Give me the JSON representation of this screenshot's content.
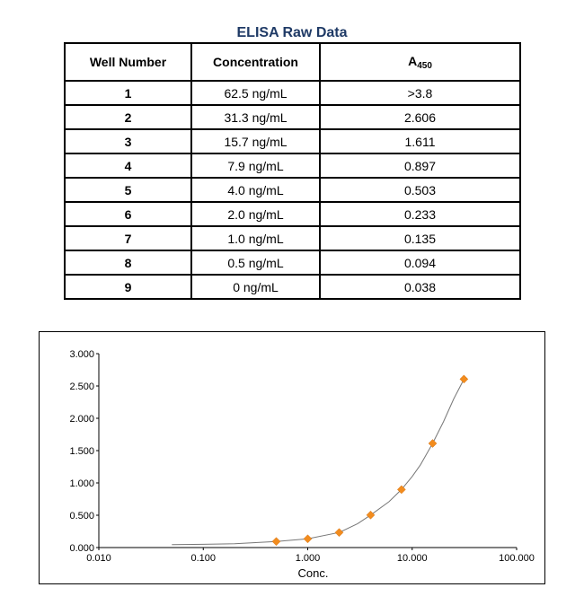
{
  "table": {
    "title": "ELISA Raw Data",
    "headers": {
      "well": "Well Number",
      "conc": "Concentration",
      "abs_main": "A",
      "abs_sub": "450"
    },
    "rows": [
      {
        "well": "1",
        "conc": "62.5 ng/mL",
        "abs": ">3.8"
      },
      {
        "well": "2",
        "conc": "31.3 ng/mL",
        "abs": "2.606"
      },
      {
        "well": "3",
        "conc": "15.7 ng/mL",
        "abs": "1.611"
      },
      {
        "well": "4",
        "conc": "7.9 ng/mL",
        "abs": "0.897"
      },
      {
        "well": "5",
        "conc": "4.0 ng/mL",
        "abs": "0.503"
      },
      {
        "well": "6",
        "conc": "2.0 ng/mL",
        "abs": "0.233"
      },
      {
        "well": "7",
        "conc": "1.0 ng/mL",
        "abs": "0.135"
      },
      {
        "well": "8",
        "conc": "0.5 ng/mL",
        "abs": "0.094"
      },
      {
        "well": "9",
        "conc": "0 ng/mL",
        "abs": "0.038"
      }
    ]
  },
  "chart_data": {
    "type": "scatter",
    "title": "",
    "xlabel": "Conc.",
    "ylabel": "",
    "x_scale": "log",
    "xlim": [
      0.01,
      100
    ],
    "ylim": [
      0,
      3
    ],
    "x_ticks": [
      "0.010",
      "0.100",
      "1.000",
      "10.000",
      "100.000"
    ],
    "y_ticks": [
      "0.000",
      "0.500",
      "1.000",
      "1.500",
      "2.000",
      "2.500",
      "3.000"
    ],
    "grid": false,
    "legend": "none",
    "colors": {
      "points": "#f28c1e",
      "curve": "#777777"
    },
    "series": [
      {
        "x": [
          0.5,
          1.0,
          2.0,
          4.0,
          7.9,
          15.7,
          31.3
        ],
        "y": [
          0.094,
          0.135,
          0.233,
          0.503,
          0.897,
          1.611,
          2.606
        ]
      }
    ],
    "fit_curve": {
      "x": [
        0.05,
        0.1,
        0.2,
        0.5,
        1.0,
        2.0,
        3.0,
        4.0,
        6.0,
        7.9,
        10.0,
        12.0,
        15.7,
        20.0,
        25.0,
        31.3
      ],
      "y": [
        0.045,
        0.05,
        0.06,
        0.094,
        0.135,
        0.233,
        0.37,
        0.503,
        0.71,
        0.897,
        1.1,
        1.28,
        1.611,
        1.95,
        2.3,
        2.606
      ]
    }
  }
}
